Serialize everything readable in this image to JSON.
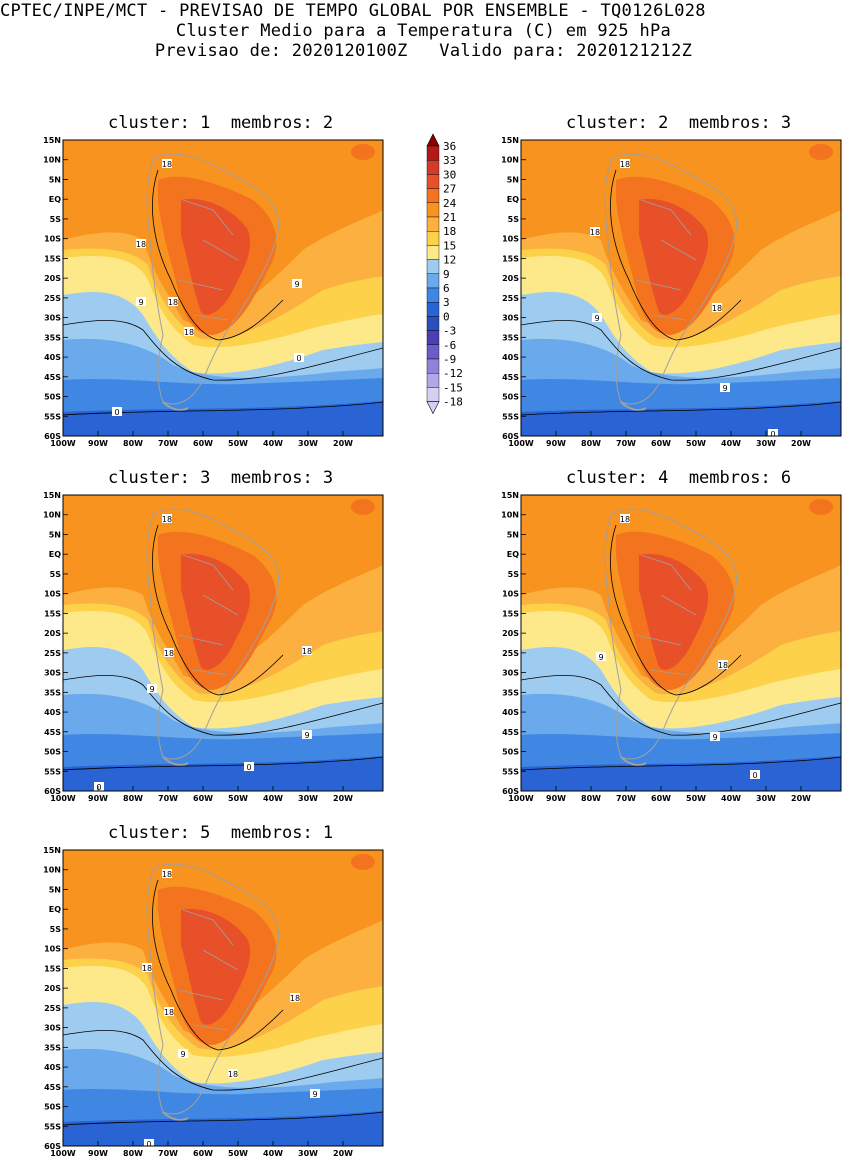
{
  "header": {
    "line1": "CPTEC/INPE/MCT - PREVISAO DE TEMPO GLOBAL POR ENSEMBLE - TQ0126L028",
    "line2": "Cluster Medio para a Temperatura (C) em 925 hPa",
    "line3": "Previsao de: 2020120100Z   Valido para: 2020121212Z"
  },
  "panels": [
    {
      "title": "cluster: 1  membros: 2",
      "contour_labels": [
        "18",
        "18",
        "18",
        "18",
        "9",
        "9",
        "0",
        "0"
      ]
    },
    {
      "title": "cluster: 2  membros: 3",
      "contour_labels": [
        "18",
        "18",
        "18",
        "9",
        "9",
        "0"
      ]
    },
    {
      "title": "cluster: 3  membros: 3",
      "contour_labels": [
        "18",
        "18",
        "18",
        "9",
        "9",
        "0",
        "0"
      ]
    },
    {
      "title": "cluster: 4  membros: 6",
      "contour_labels": [
        "18",
        "18",
        "9",
        "9",
        "0"
      ]
    },
    {
      "title": "cluster: 5  membros: 1",
      "contour_labels": [
        "18",
        "18",
        "18",
        "18",
        "18",
        "9",
        "9",
        "0"
      ]
    }
  ],
  "axes": {
    "lat_labels": [
      "15N",
      "10N",
      "5N",
      "EQ",
      "5S",
      "10S",
      "15S",
      "20S",
      "25S",
      "30S",
      "35S",
      "40S",
      "45S",
      "50S",
      "55S",
      "60S"
    ],
    "lon_labels": [
      "100W",
      "90W",
      "80W",
      "70W",
      "60W",
      "50W",
      "40W",
      "30W",
      "20W"
    ]
  },
  "colorbar": {
    "labels": [
      "36",
      "33",
      "30",
      "27",
      "24",
      "21",
      "18",
      "15",
      "12",
      "9",
      "6",
      "3",
      "0",
      "-3",
      "-6",
      "-9",
      "-12",
      "-15",
      "-18"
    ],
    "colors": [
      "#8b0000",
      "#b21a1a",
      "#d43a2a",
      "#e8502a",
      "#f4731f",
      "#f7931e",
      "#fbb040",
      "#fdd14a",
      "#fde98a",
      "#9ecbf0",
      "#6aa9ec",
      "#3f87e3",
      "#2a64d4",
      "#2a4fbf",
      "#4a3fb3",
      "#6b5cc8",
      "#8f82d9",
      "#b3a8e6",
      "#d6cff2"
    ]
  }
}
